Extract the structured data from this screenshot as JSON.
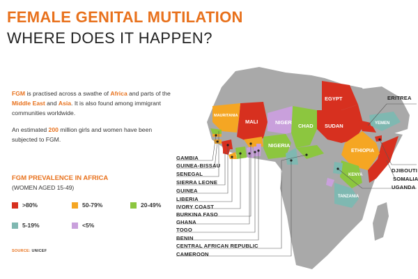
{
  "title": "FEMALE GENITAL MUTILATION",
  "subtitle": "WHERE DOES IT HAPPEN?",
  "intro": {
    "p1_a": "FGM",
    "p1_b": " is practised across a swathe of ",
    "p1_c": "Africa",
    "p1_d": " and parts of the ",
    "p1_e": "Middle East",
    "p1_f": " and ",
    "p1_g": "Asia",
    "p1_h": ". It is also found among immigrant communities worldwide.",
    "p2_a": "An estimated ",
    "p2_b": "200",
    "p2_c": " million girls and women have been subjected to FGM."
  },
  "legend": {
    "title": "FGM PREVALENCE IN AFRICA",
    "subtitle": "(WOMEN AGED 15-49)",
    "items": [
      {
        "label": ">80%",
        "color": "#d7301f"
      },
      {
        "label": "50-79%",
        "color": "#f5a623"
      },
      {
        "label": "20-49%",
        "color": "#8cc63f"
      },
      {
        "label": "5-19%",
        "color": "#7fb8b1"
      },
      {
        "label": "<5%",
        "color": "#c9a0dc"
      }
    ]
  },
  "source": {
    "label": "SOURCE:",
    "value": "UNICEF"
  },
  "map_labels": {
    "egypt": "EGYPT",
    "sudan": "SUDAN",
    "mali": "MALI",
    "niger": "NIGER",
    "chad": "CHAD",
    "nigeria": "NIGERIA",
    "mauritania": "MAURITANIA",
    "ethiopia": "ETHIOPIA",
    "kenya": "KENYA",
    "tanzania": "TANZANIA",
    "yemen": "YEMEN"
  },
  "callouts_left": [
    "GAMBIA",
    "GUINEA-BISSAU",
    "SENEGAL",
    "SIERRA LEONE",
    "GUINEA",
    "LIBERIA",
    "IVORY COAST",
    "BURKINA FASO",
    "GHANA",
    "TOGO",
    "BENIN",
    "CENTRAL AFRICAN REPUBLIC",
    "CAMEROON"
  ],
  "callouts_right": {
    "eritrea": "ERITREA",
    "djibouti": "DJIBOUTI",
    "somalia": "SOMALIA",
    "uganda": "UGANDA"
  },
  "colors": {
    "accent": "#e8711c",
    "land": "#a9a9a9",
    "red": "#d7301f",
    "orange": "#f5a623",
    "green": "#8cc63f",
    "teal": "#7fb8b1",
    "purple": "#c9a0dc"
  }
}
